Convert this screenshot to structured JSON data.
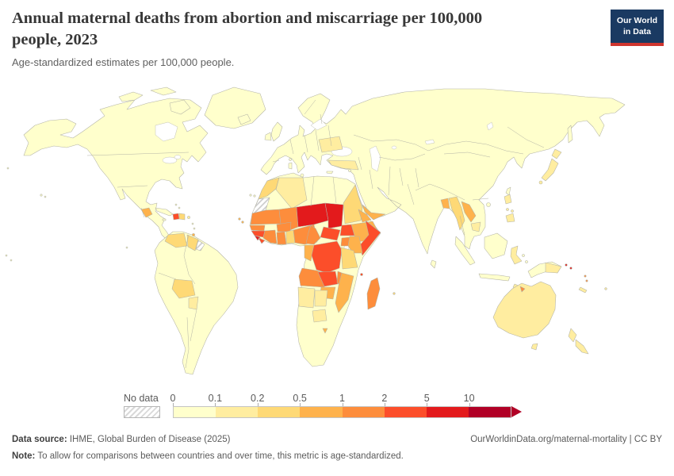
{
  "header": {
    "title_line1": "Annual maternal deaths from abortion and miscarriage per 100,000",
    "title_line2": "people, 2023",
    "subtitle": "Age-standardized estimates per 100,000 people."
  },
  "logo": {
    "line1": "Our World",
    "line2": "in Data",
    "bg_color": "#1a3a62",
    "accent_color": "#cf352e"
  },
  "chart_data": {
    "type": "choropleth_map",
    "title": "Annual maternal deaths from abortion and miscarriage per 100,000 people, 2023",
    "subtitle": "Age-standardized estimates per 100,000 people.",
    "unit": "deaths per 100,000 people",
    "legend": {
      "no_data_label": "No data",
      "tick_labels": [
        "0",
        "0.1",
        "0.2",
        "0.5",
        "1",
        "2",
        "5",
        "10"
      ],
      "bin_colors": [
        "#ffffcc",
        "#ffeda0",
        "#fed976",
        "#feb24c",
        "#fd8d3c",
        "#fc4e2a",
        "#e31a1c",
        "#b10026"
      ],
      "bin_ranges": [
        "0-0.1",
        "0.1-0.2",
        "0.2-0.5",
        "0.5-1",
        "1-2",
        "2-5",
        "5-10",
        "10+"
      ]
    },
    "regions": {
      "north-america": 0,
      "greenland": 0,
      "canadian-arctic": 0,
      "cuba": 0,
      "jamaica": 0,
      "bahamas": 0,
      "puerto-rico": 1,
      "lesser-antilles": 0,
      "trinidad": 3,
      "haiti": 5,
      "dominican-republic": 2,
      "guatemala": 3,
      "south-america": 0,
      "venezuela": 2,
      "guyana-suriname": 2,
      "french-guiana": "no-data",
      "bolivia": 2,
      "paraguay": 1,
      "galapagos": 0,
      "pacific-islands": 0,
      "hawaii": 0,
      "africa": 0,
      "morocco": 2,
      "western-sahara": "no-data",
      "algeria": 1,
      "mauritania": 4,
      "mali": 4,
      "senegal": 4,
      "guinea": 5,
      "sierra-leone": 6,
      "liberia": 5,
      "ivory-coast": 4,
      "burkina-faso": 4,
      "ghana": 4,
      "togo-benin": 2,
      "niger": 6,
      "chad": 6,
      "nigeria": 4,
      "sudan": 2,
      "eritrea": 3,
      "ethiopia": 3,
      "somalia": 5,
      "south-sudan": 5,
      "central-african-republic": 5,
      "cameroon": 4,
      "gabon-congo": 3,
      "drc": 5,
      "uganda": 4,
      "kenya": 3,
      "tanzania": 2,
      "angola": 4,
      "zambia": 5,
      "malawi": 4,
      "mozambique": 3,
      "zimbabwe": 3,
      "namibia": 1,
      "botswana": 1,
      "lesotho": 3,
      "south-africa-patch": 1,
      "madagascar": 4,
      "comoros": 5,
      "mauritius": 2,
      "cape-verde": 3,
      "canary-islands": 0,
      "eurasia": 0,
      "iceland": 0,
      "united-kingdom": 0,
      "ireland": 0,
      "ukraine": 1,
      "turkey": 1,
      "cyprus": 0,
      "crete": 0,
      "sicily": 0,
      "sardinia": 0,
      "corsica": 0,
      "yemen": 3,
      "bangladesh": 3,
      "myanmar": 2,
      "laos": 3,
      "cambodia": 1,
      "sri-lanka": 0,
      "taiwan": 0,
      "hainan": 0,
      "japan": 1,
      "sakhalin": 0,
      "philippines": 1,
      "indonesia": 0,
      "sulawesi": 1,
      "timor-island": 1,
      "timor-leste": 4,
      "new-guinea": 0,
      "papua-new-guinea": 1,
      "australia": 1,
      "tasmania": 1,
      "new-zealand": 1,
      "solomon-islands": 6,
      "vanuatu": 4,
      "new-caledonia": 1,
      "fiji": 1
    }
  },
  "footer": {
    "source_label": "Data source:",
    "source_text": " IHME, Global Burden of Disease (2025)",
    "link_text": "OurWorldinData.org/maternal-mortality | CC BY",
    "note_label": "Note:",
    "note_text": " To allow for comparisons between countries and over time, this metric is age-standardized."
  }
}
